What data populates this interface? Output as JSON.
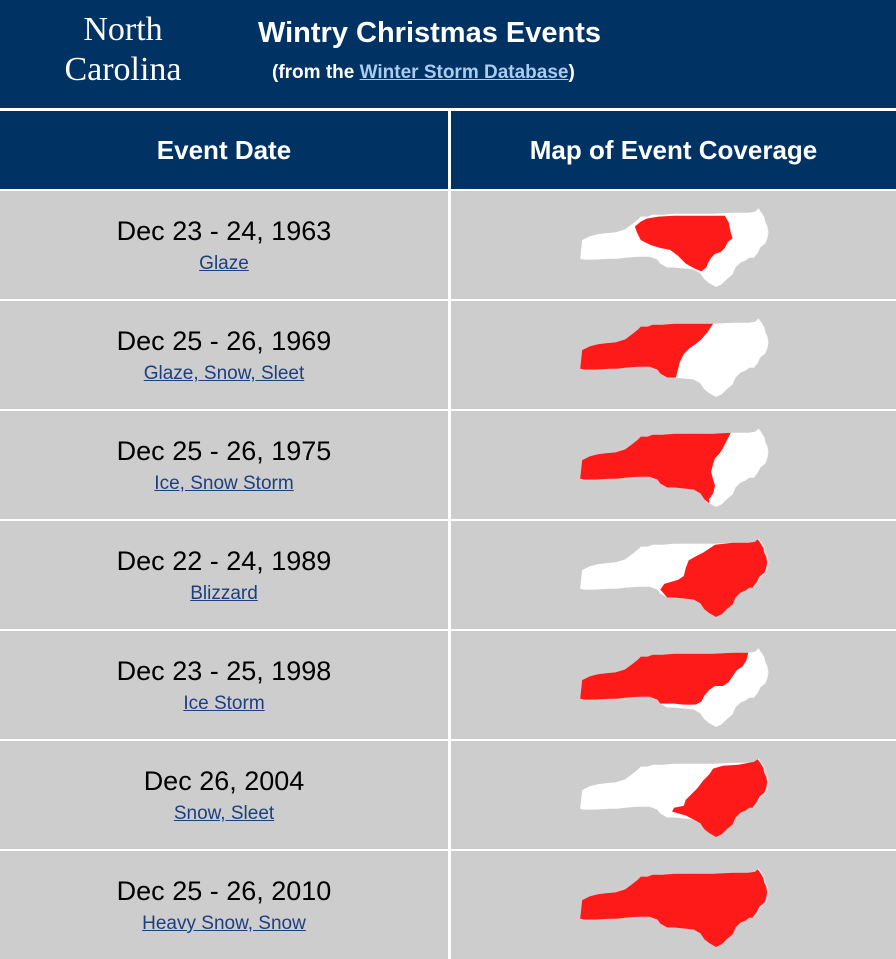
{
  "header": {
    "state_title_line1": "North",
    "state_title_line2": "Carolina",
    "title": "Wintry Christmas Events",
    "subtitle_prefix": "(from the ",
    "subtitle_link": "Winter Storm Database",
    "subtitle_suffix": ")"
  },
  "table": {
    "col_date": "Event Date",
    "col_map": "Map of Event Coverage"
  },
  "events": [
    {
      "date": "Dec 23 - 24, 1963",
      "types": "Glaze",
      "coverage": "central"
    },
    {
      "date": "Dec 25 - 26, 1969",
      "types": "Glaze, Snow, Sleet",
      "coverage": "west"
    },
    {
      "date": "Dec 25 - 26, 1975",
      "types": "Ice, Snow Storm",
      "coverage": "west-central"
    },
    {
      "date": "Dec 22 - 24, 1989",
      "types": "Blizzard",
      "coverage": "east"
    },
    {
      "date": "Dec 23 - 25, 1998",
      "types": "Ice Storm",
      "coverage": "west-piedmont"
    },
    {
      "date": "Dec 26, 2004",
      "types": "Snow, Sleet",
      "coverage": "southeast"
    },
    {
      "date": "Dec 25 - 26, 2010",
      "types": "Heavy Snow, Snow",
      "coverage": "statewide"
    }
  ],
  "colors": {
    "banner": "#003263",
    "row_bg": "#cdcdcd",
    "coverage": "#ff1a1a",
    "state": "#ffffff"
  }
}
